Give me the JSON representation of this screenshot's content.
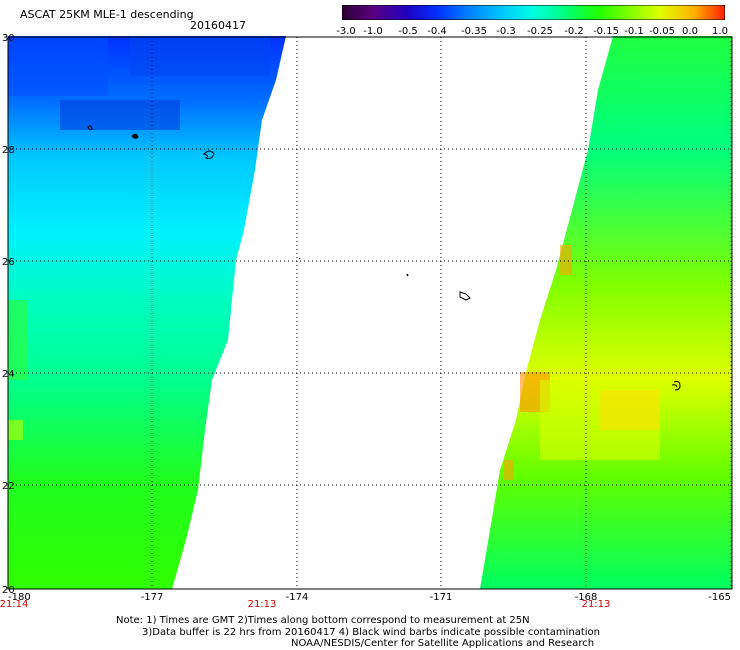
{
  "header": {
    "title": "ASCAT 25KM MLE-1 descending",
    "date": "20160417"
  },
  "colorbar": {
    "labels": [
      "-3.0",
      "-1.0",
      "-0.5",
      "-0.4",
      "-0.35",
      "-0.3",
      "-0.25",
      "-0.2",
      "-0.15",
      "-0.1",
      "-0.05",
      "0.0",
      "1.0"
    ],
    "colors": [
      "#2a0030",
      "#5a0080",
      "#2000c0",
      "#0030ff",
      "#0080ff",
      "#00c8ff",
      "#00ffe0",
      "#00ff80",
      "#20ff00",
      "#80ff00",
      "#e0ff00",
      "#ffb000",
      "#ff2000"
    ]
  },
  "map": {
    "lon_labels": [
      "-180",
      "-177",
      "-174",
      "-171",
      "-168",
      "-165"
    ],
    "lat_labels": [
      "30",
      "28",
      "26",
      "24",
      "22",
      "20"
    ],
    "background_color": "#ffffff"
  },
  "times": {
    "t1": "21:14",
    "t2": "21:13",
    "t3": "21:13"
  },
  "notes": {
    "line1": "Note: 1) Times are GMT 2)Times along bottom correspond to measurement at 25N",
    "line2": "3)Data buffer is 22 hrs from 20160417 4) Black wind barbs indicate possible contamination",
    "line3": "NOAA/NESDIS/Center for Satellite Applications and Research"
  }
}
